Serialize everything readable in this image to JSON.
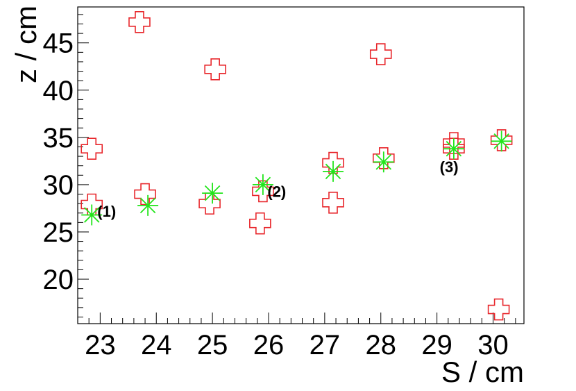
{
  "chart_data": {
    "type": "scatter",
    "title": "",
    "xlabel": "S / cm",
    "ylabel": "z / cm",
    "xlim": [
      22.6,
      30.55
    ],
    "ylim": [
      15.3,
      48.8
    ],
    "xticks": [
      23,
      24,
      25,
      26,
      27,
      28,
      29,
      30
    ],
    "yticks": [
      20,
      25,
      30,
      35,
      40,
      45
    ],
    "grid": false,
    "legend": "none",
    "colors": {
      "series_red": "#e8262b",
      "series_green": "#22e51b"
    },
    "series": [
      {
        "marker": "open-cross",
        "color": "#e8262b",
        "points": [
          {
            "x": 22.85,
            "y": 33.8
          },
          {
            "x": 22.85,
            "y": 27.9
          },
          {
            "x": 23.7,
            "y": 47.2
          },
          {
            "x": 23.8,
            "y": 29.0
          },
          {
            "x": 24.95,
            "y": 28.0
          },
          {
            "x": 25.05,
            "y": 42.2
          },
          {
            "x": 25.85,
            "y": 25.9
          },
          {
            "x": 25.9,
            "y": 29.3
          },
          {
            "x": 27.15,
            "y": 32.3
          },
          {
            "x": 27.15,
            "y": 28.1
          },
          {
            "x": 28.05,
            "y": 32.8
          },
          {
            "x": 28.0,
            "y": 43.8
          },
          {
            "x": 29.3,
            "y": 34.4
          },
          {
            "x": 29.3,
            "y": 33.8
          },
          {
            "x": 30.15,
            "y": 34.7
          },
          {
            "x": 30.1,
            "y": 16.8
          }
        ]
      },
      {
        "marker": "star",
        "color": "#22e51b",
        "points": [
          {
            "x": 22.85,
            "y": 26.8
          },
          {
            "x": 23.85,
            "y": 27.8
          },
          {
            "x": 25.0,
            "y": 29.1
          },
          {
            "x": 25.9,
            "y": 30.0
          },
          {
            "x": 27.15,
            "y": 31.4
          },
          {
            "x": 28.05,
            "y": 32.4
          },
          {
            "x": 29.3,
            "y": 33.8
          },
          {
            "x": 30.15,
            "y": 34.6
          }
        ]
      }
    ],
    "annotations": [
      {
        "text": "(1)",
        "x": 22.95,
        "y": 27.2
      },
      {
        "text": "(2)",
        "x": 25.98,
        "y": 29.3
      },
      {
        "text": "(3)",
        "x": 29.05,
        "y": 31.9
      }
    ]
  }
}
